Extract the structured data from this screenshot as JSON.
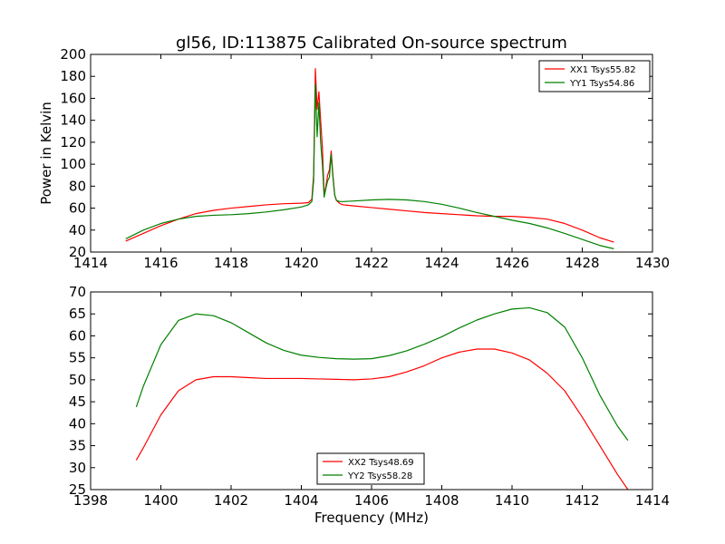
{
  "figure": {
    "title": "gl56, ID:113875 Calibrated On-source spectrum"
  },
  "chart_data": [
    {
      "type": "line",
      "title": "gl56, ID:113875 Calibrated On-source spectrum",
      "xlabel": "",
      "ylabel": "Power in Kelvin",
      "xlim": [
        1414,
        1430
      ],
      "ylim": [
        20,
        200
      ],
      "xticks": [
        1414,
        1416,
        1418,
        1420,
        1422,
        1424,
        1426,
        1428,
        1430
      ],
      "yticks": [
        20,
        40,
        60,
        80,
        100,
        120,
        140,
        160,
        180,
        200
      ],
      "legend": {
        "placement": "top-right"
      },
      "grid": false,
      "series": [
        {
          "name": "XX1 Tsys55.82",
          "color": "#ff0000",
          "x": [
            1415.0,
            1415.5,
            1416.0,
            1416.5,
            1417.0,
            1417.5,
            1418.0,
            1418.5,
            1419.0,
            1419.5,
            1420.0,
            1420.2,
            1420.3,
            1420.35,
            1420.4,
            1420.45,
            1420.5,
            1420.55,
            1420.6,
            1420.65,
            1420.7,
            1420.75,
            1420.8,
            1420.85,
            1420.9,
            1420.95,
            1421.0,
            1421.1,
            1421.2,
            1421.5,
            1422.0,
            1422.5,
            1423.0,
            1423.5,
            1424.0,
            1424.5,
            1425.0,
            1425.5,
            1426.0,
            1426.5,
            1427.0,
            1427.5,
            1428.0,
            1428.5,
            1428.9
          ],
          "y": [
            30,
            37,
            44,
            50,
            55,
            58,
            60,
            61.5,
            63,
            64,
            64.5,
            65,
            68,
            90,
            187,
            150,
            166,
            140,
            115,
            72,
            80,
            90,
            95,
            112,
            90,
            72,
            67,
            64,
            63,
            62,
            60.5,
            59,
            57.5,
            56,
            55,
            54,
            53,
            52.5,
            52.5,
            51.5,
            50,
            46,
            40,
            33,
            29
          ]
        },
        {
          "name": "YY1 Tsys54.86",
          "color": "#008000",
          "x": [
            1415.0,
            1415.5,
            1416.0,
            1416.5,
            1417.0,
            1417.5,
            1418.0,
            1418.5,
            1419.0,
            1419.5,
            1420.0,
            1420.2,
            1420.3,
            1420.35,
            1420.4,
            1420.45,
            1420.5,
            1420.55,
            1420.6,
            1420.65,
            1420.7,
            1420.75,
            1420.8,
            1420.85,
            1420.9,
            1420.95,
            1421.0,
            1421.1,
            1421.2,
            1421.5,
            1422.0,
            1422.5,
            1423.0,
            1423.5,
            1424.0,
            1424.5,
            1425.0,
            1425.5,
            1426.0,
            1426.5,
            1427.0,
            1427.5,
            1428.0,
            1428.5,
            1428.9
          ],
          "y": [
            32,
            40,
            46,
            50,
            52.5,
            53.5,
            54,
            55,
            56.5,
            58.5,
            61,
            63,
            66,
            85,
            173,
            125,
            156,
            120,
            100,
            70,
            78,
            85,
            88,
            109,
            88,
            72,
            67,
            66,
            66,
            66.5,
            67.5,
            68,
            67.5,
            66,
            63.5,
            60,
            56,
            52.5,
            49,
            46,
            42,
            37,
            31.5,
            26,
            23
          ]
        }
      ]
    },
    {
      "type": "line",
      "title": "",
      "xlabel": "Frequency (MHz)",
      "ylabel": "",
      "xlim": [
        1398,
        1414
      ],
      "ylim": [
        25,
        70
      ],
      "xticks": [
        1398,
        1400,
        1402,
        1404,
        1406,
        1408,
        1410,
        1412,
        1414
      ],
      "yticks": [
        25,
        30,
        35,
        40,
        45,
        50,
        55,
        60,
        65,
        70
      ],
      "legend": {
        "placement": "bottom-center"
      },
      "grid": false,
      "series": [
        {
          "name": "XX2 Tsys48.69",
          "color": "#ff0000",
          "x": [
            1399.3,
            1399.5,
            1400.0,
            1400.5,
            1401.0,
            1401.5,
            1402.0,
            1402.5,
            1403.0,
            1403.5,
            1404.0,
            1404.5,
            1405.0,
            1405.5,
            1406.0,
            1406.5,
            1407.0,
            1407.5,
            1408.0,
            1408.5,
            1409.0,
            1409.5,
            1410.0,
            1410.5,
            1411.0,
            1411.5,
            1412.0,
            1412.5,
            1413.0,
            1413.3
          ],
          "y": [
            31.7,
            34.5,
            42,
            47.5,
            50,
            50.7,
            50.7,
            50.5,
            50.3,
            50.3,
            50.3,
            50.2,
            50.1,
            50,
            50.2,
            50.7,
            51.8,
            53.2,
            55,
            56.3,
            57,
            57,
            56.1,
            54.5,
            51.5,
            47.5,
            41.5,
            35,
            28.5,
            25
          ]
        },
        {
          "name": "YY2 Tsys58.28",
          "color": "#008000",
          "x": [
            1399.3,
            1399.5,
            1400.0,
            1400.5,
            1401.0,
            1401.5,
            1402.0,
            1402.5,
            1403.0,
            1403.5,
            1404.0,
            1404.5,
            1405.0,
            1405.5,
            1406.0,
            1406.5,
            1407.0,
            1407.5,
            1408.0,
            1408.5,
            1409.0,
            1409.5,
            1410.0,
            1410.5,
            1411.0,
            1411.5,
            1412.0,
            1412.5,
            1413.0,
            1413.3
          ],
          "y": [
            43.8,
            48.5,
            58,
            63.5,
            65,
            64.6,
            63,
            60.7,
            58.4,
            56.7,
            55.6,
            55.1,
            54.8,
            54.7,
            54.8,
            55.5,
            56.6,
            58.1,
            59.8,
            61.8,
            63.6,
            65,
            66.1,
            66.4,
            65.3,
            62,
            55,
            46.5,
            39.5,
            36.2
          ]
        }
      ]
    }
  ]
}
